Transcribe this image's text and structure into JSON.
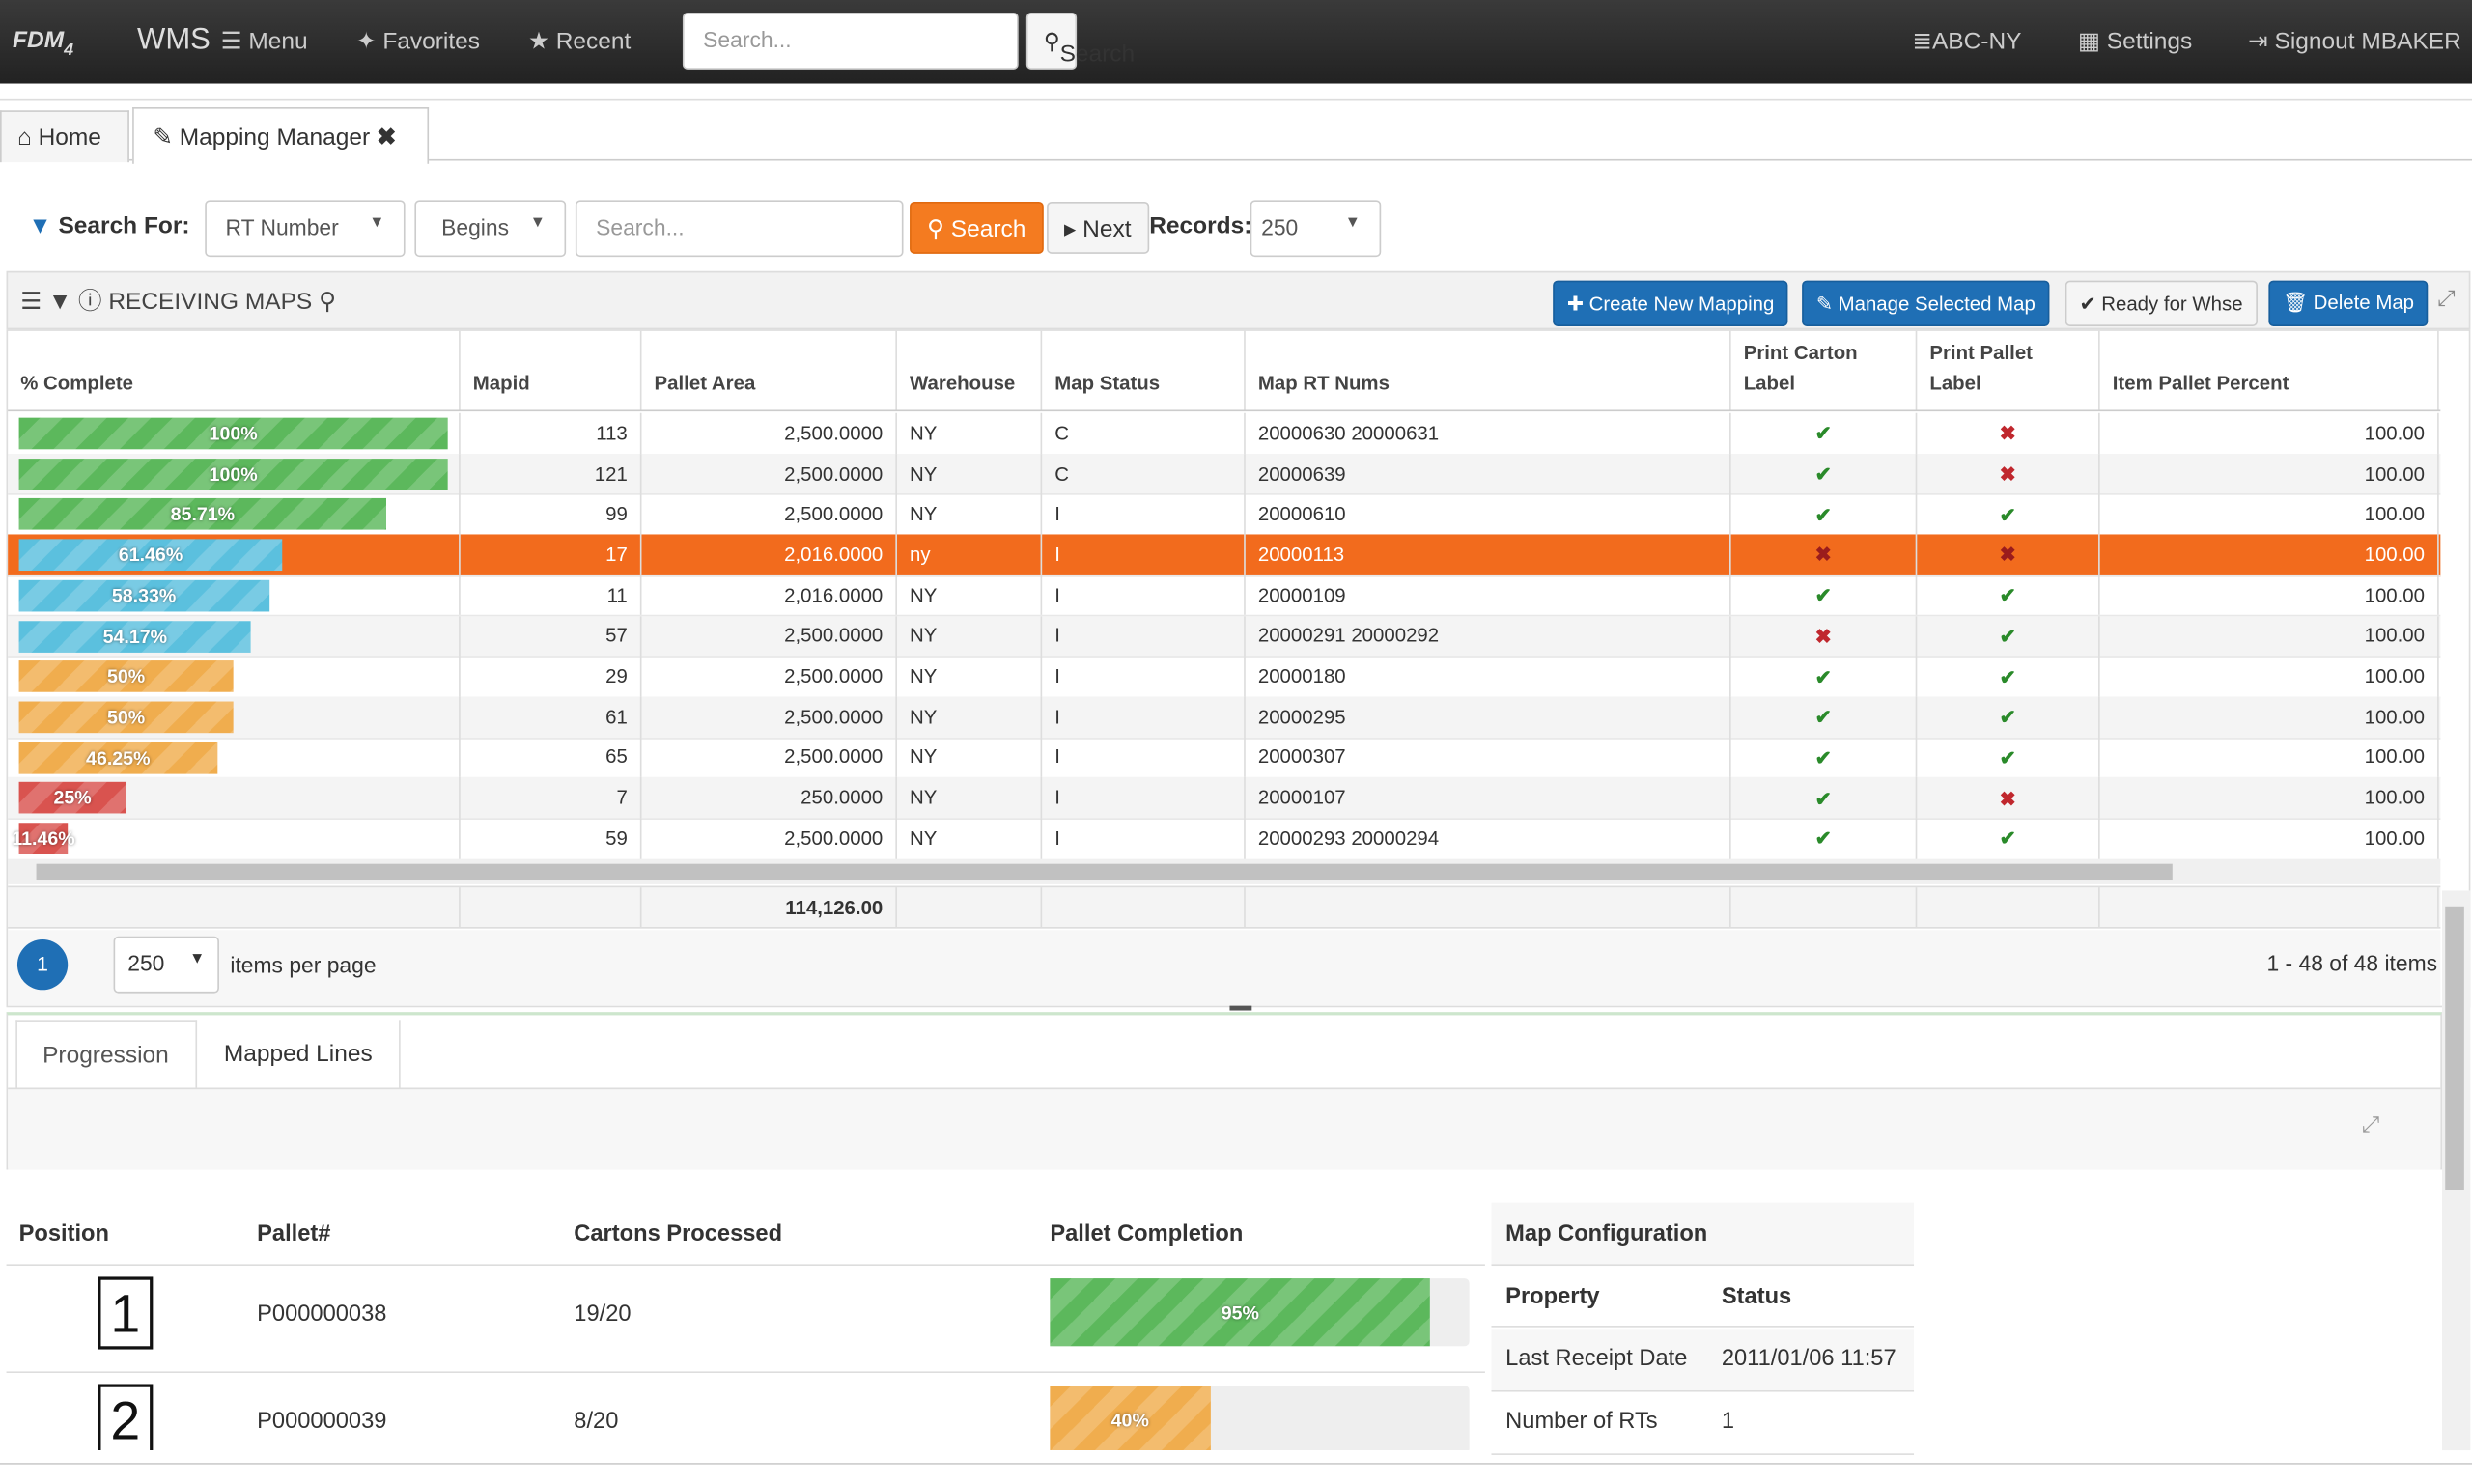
{
  "nav": {
    "brand": "FDM",
    "brand_sub": "4",
    "brand_suffix": "WMS",
    "items": [
      "Menu",
      "Favorites",
      "Recent"
    ],
    "search_placeholder": "Search...",
    "search_button": "Search",
    "right": [
      "ABC-NY",
      "Settings",
      "Signout MBAKER"
    ]
  },
  "tabs": [
    "Home",
    "Mapping Manager"
  ],
  "filter": {
    "label": "Search For:",
    "field": "RT Number",
    "operator": "Begins",
    "placeholder": "Search...",
    "search_button": "Search",
    "next_button": "Next",
    "records_label": "Records:",
    "records": "250"
  },
  "toolbar": {
    "title": "RECEIVING MAPS",
    "buttons": [
      "Create New Mapping",
      "Manage Selected Map",
      "Ready for Whse",
      "Delete Map"
    ]
  },
  "grid": {
    "columns": [
      "% Complete",
      "Mapid",
      "Pallet Area",
      "Warehouse",
      "Map Status",
      "Map RT Nums",
      "Print Carton Label",
      "Print Pallet Label",
      "Item Pallet Percent"
    ],
    "rows": [
      {
        "percent": 100,
        "percent_label": "100%",
        "mapid": 113,
        "pallet_area": "2,500.0000",
        "warehouse": "NY",
        "status": "C",
        "rt_nums": "20000630 20000631",
        "carton_label": true,
        "pallet_label": false,
        "item_pallet_percent": "100.00"
      },
      {
        "percent": 100,
        "percent_label": "100%",
        "mapid": 121,
        "pallet_area": "2,500.0000",
        "warehouse": "NY",
        "status": "C",
        "rt_nums": "20000639",
        "carton_label": true,
        "pallet_label": false,
        "item_pallet_percent": "100.00"
      },
      {
        "percent": 85.71,
        "percent_label": "85.71%",
        "mapid": 99,
        "pallet_area": "2,500.0000",
        "warehouse": "NY",
        "status": "I",
        "rt_nums": "20000610",
        "carton_label": true,
        "pallet_label": true,
        "item_pallet_percent": "100.00"
      },
      {
        "percent": 61.46,
        "percent_label": "61.46%",
        "mapid": 17,
        "pallet_area": "2,016.0000",
        "warehouse": "ny",
        "status": "I",
        "rt_nums": "20000113",
        "carton_label": false,
        "pallet_label": false,
        "item_pallet_percent": "100.00",
        "selected": true
      },
      {
        "percent": 58.33,
        "percent_label": "58.33%",
        "mapid": 11,
        "pallet_area": "2,016.0000",
        "warehouse": "NY",
        "status": "I",
        "rt_nums": "20000109",
        "carton_label": true,
        "pallet_label": true,
        "item_pallet_percent": "100.00"
      },
      {
        "percent": 54.17,
        "percent_label": "54.17%",
        "mapid": 57,
        "pallet_area": "2,500.0000",
        "warehouse": "NY",
        "status": "I",
        "rt_nums": "20000291 20000292",
        "carton_label": false,
        "pallet_label": true,
        "item_pallet_percent": "100.00"
      },
      {
        "percent": 50,
        "percent_label": "50%",
        "mapid": 29,
        "pallet_area": "2,500.0000",
        "warehouse": "NY",
        "status": "I",
        "rt_nums": "20000180",
        "carton_label": true,
        "pallet_label": true,
        "item_pallet_percent": "100.00"
      },
      {
        "percent": 50,
        "percent_label": "50%",
        "mapid": 61,
        "pallet_area": "2,500.0000",
        "warehouse": "NY",
        "status": "I",
        "rt_nums": "20000295",
        "carton_label": true,
        "pallet_label": true,
        "item_pallet_percent": "100.00"
      },
      {
        "percent": 46.25,
        "percent_label": "46.25%",
        "mapid": 65,
        "pallet_area": "2,500.0000",
        "warehouse": "NY",
        "status": "I",
        "rt_nums": "20000307",
        "carton_label": true,
        "pallet_label": true,
        "item_pallet_percent": "100.00"
      },
      {
        "percent": 25,
        "percent_label": "25%",
        "mapid": 7,
        "pallet_area": "250.0000",
        "warehouse": "NY",
        "status": "I",
        "rt_nums": "20000107",
        "carton_label": true,
        "pallet_label": false,
        "item_pallet_percent": "100.00"
      },
      {
        "percent": 11.46,
        "percent_label": "11.46%",
        "mapid": 59,
        "pallet_area": "2,500.0000",
        "warehouse": "NY",
        "status": "I",
        "rt_nums": "20000293 20000294",
        "carton_label": true,
        "pallet_label": true,
        "item_pallet_percent": "100.00"
      }
    ],
    "total_pallet_area": "114,126.00"
  },
  "pager": {
    "page": "1",
    "page_size": "250",
    "per_page_label": "items per page",
    "summary": "1 - 48 of 48 items"
  },
  "detail_tabs": [
    "Progression",
    "Mapped Lines"
  ],
  "progression": {
    "columns": [
      "Position",
      "Pallet#",
      "Cartons Processed",
      "Pallet Completion"
    ],
    "rows": [
      {
        "position": "1",
        "pallet": "P000000038",
        "cartons": "19/20",
        "completion": 95,
        "completion_label": "95%"
      },
      {
        "position": "2",
        "pallet": "P000000039",
        "cartons": "8/20",
        "completion": 40,
        "completion_label": "40%"
      }
    ]
  },
  "map_config": {
    "title": "Map Configuration",
    "columns": [
      "Property",
      "Status"
    ],
    "rows": [
      [
        "Last Receipt Date",
        "2011/01/06 11:57"
      ],
      [
        "Number of RTs",
        "1"
      ]
    ]
  }
}
